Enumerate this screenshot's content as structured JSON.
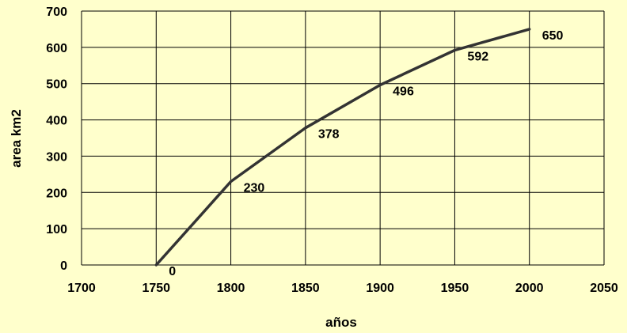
{
  "chart_data": {
    "type": "line",
    "title": "",
    "xlabel": "años",
    "ylabel": "area km2",
    "xlim": [
      1700,
      2050
    ],
    "ylim": [
      0,
      700
    ],
    "xticks": [
      1700,
      1750,
      1800,
      1850,
      1900,
      1950,
      2000,
      2050
    ],
    "yticks": [
      0,
      100,
      200,
      300,
      400,
      500,
      600,
      700
    ],
    "grid": true,
    "legend": "none",
    "series": [
      {
        "color": "#333333",
        "x": [
          1750,
          1800,
          1850,
          1900,
          1950,
          2000
        ],
        "y": [
          0,
          230,
          378,
          496,
          592,
          650
        ],
        "data_labels": [
          "0",
          "230",
          "378",
          "496",
          "592",
          "650"
        ]
      }
    ]
  },
  "colors": {
    "background": "#ffffcc",
    "grid": "#000000",
    "line": "#333333"
  }
}
